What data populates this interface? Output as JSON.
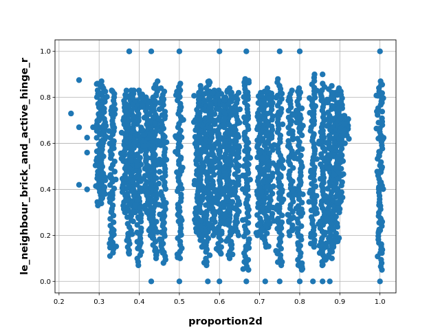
{
  "chart_data": {
    "type": "scatter",
    "title": "",
    "xlabel": "proportion2d",
    "ylabel": "le_neighbour_brick_and_active_hinge_r",
    "xlim": [
      0.19,
      1.04
    ],
    "ylim": [
      -0.05,
      1.05
    ],
    "xticks": [
      0.2,
      0.3,
      0.4,
      0.5,
      0.6,
      0.7,
      0.8,
      0.9,
      1.0
    ],
    "yticks": [
      0.0,
      0.2,
      0.4,
      0.6,
      0.8,
      1.0
    ],
    "xtick_labels": [
      "0.2",
      "0.3",
      "0.4",
      "0.5",
      "0.6",
      "0.7",
      "0.8",
      "0.9",
      "1.0"
    ],
    "ytick_labels": [
      "0.0",
      "0.2",
      "0.4",
      "0.6",
      "0.8",
      "1.0"
    ],
    "grid": true,
    "marker_color": "#1f77b4",
    "points_note": "dense vertical bands of points at discrete proportion2d values",
    "columns": [
      {
        "x": 0.5,
        "y_range": [
          0.1,
          0.86
        ],
        "extra_y": [
          0.0,
          1.0
        ]
      },
      {
        "x": 0.6,
        "y_range": [
          0.12,
          0.83
        ],
        "extra_y": [
          0.0,
          1.0
        ]
      },
      {
        "x": 0.667,
        "y_range": [
          0.05,
          0.88
        ],
        "extra_y": [
          0.0,
          1.0
        ]
      },
      {
        "x": 0.75,
        "y_range": [
          0.07,
          0.88
        ],
        "extra_y": [
          0.0,
          1.0
        ]
      },
      {
        "x": 0.8,
        "y_range": [
          0.05,
          0.84
        ],
        "extra_y": [
          0.0,
          1.0
        ]
      },
      {
        "x": 1.0,
        "y_range": [
          0.05,
          0.87
        ],
        "extra_y": [
          0.0,
          1.0
        ]
      },
      {
        "x": 0.46,
        "y_range": [
          0.08,
          0.84
        ],
        "extra_y": []
      },
      {
        "x": 0.44,
        "y_range": [
          0.1,
          0.87
        ],
        "extra_y": []
      },
      {
        "x": 0.43,
        "y_range": [
          0.2,
          0.8
        ],
        "extra_y": [
          0.0,
          1.0
        ]
      },
      {
        "x": 0.857,
        "y_range": [
          0.07,
          0.86
        ],
        "extra_y": [
          0.0
        ]
      },
      {
        "x": 0.875,
        "y_range": [
          0.1,
          0.85
        ],
        "extra_y": [
          0.0
        ]
      },
      {
        "x": 0.889,
        "y_range": [
          0.15,
          0.82
        ],
        "extra_y": []
      },
      {
        "x": 0.9,
        "y_range": [
          0.3,
          0.84
        ],
        "extra_y": []
      },
      {
        "x": 0.833,
        "y_range": [
          0.15,
          0.9
        ],
        "extra_y": [
          0.0
        ]
      },
      {
        "x": 0.714,
        "y_range": [
          0.15,
          0.84
        ],
        "extra_y": [
          0.0
        ]
      },
      {
        "x": 0.727,
        "y_range": [
          0.25,
          0.82
        ],
        "extra_y": []
      },
      {
        "x": 0.778,
        "y_range": [
          0.2,
          0.83
        ],
        "extra_y": []
      },
      {
        "x": 0.7,
        "y_range": [
          0.2,
          0.82
        ],
        "extra_y": []
      },
      {
        "x": 0.625,
        "y_range": [
          0.1,
          0.84
        ],
        "extra_y": []
      },
      {
        "x": 0.643,
        "y_range": [
          0.2,
          0.82
        ],
        "extra_y": []
      },
      {
        "x": 0.571,
        "y_range": [
          0.07,
          0.87
        ],
        "extra_y": [
          0.0
        ]
      },
      {
        "x": 0.556,
        "y_range": [
          0.15,
          0.85
        ],
        "extra_y": []
      },
      {
        "x": 0.545,
        "y_range": [
          0.2,
          0.82
        ],
        "extra_y": []
      },
      {
        "x": 0.583,
        "y_range": [
          0.2,
          0.83
        ],
        "extra_y": []
      },
      {
        "x": 0.615,
        "y_range": [
          0.25,
          0.8
        ],
        "extra_y": []
      },
      {
        "x": 0.909,
        "y_range": [
          0.6,
          0.72
        ],
        "extra_y": []
      },
      {
        "x": 0.917,
        "y_range": [
          0.62,
          0.72
        ],
        "extra_y": []
      },
      {
        "x": 0.4,
        "y_range": [
          0.07,
          0.83
        ],
        "extra_y": []
      },
      {
        "x": 0.417,
        "y_range": [
          0.3,
          0.8
        ],
        "extra_y": []
      },
      {
        "x": 0.375,
        "y_range": [
          0.12,
          0.83
        ],
        "extra_y": [
          1.0
        ]
      },
      {
        "x": 0.385,
        "y_range": [
          0.3,
          0.83
        ],
        "extra_y": []
      },
      {
        "x": 0.333,
        "y_range": [
          0.11,
          0.83
        ],
        "extra_y": []
      },
      {
        "x": 0.364,
        "y_range": [
          0.3,
          0.8
        ],
        "extra_y": []
      },
      {
        "x": 0.3,
        "y_range": [
          0.33,
          0.86
        ],
        "extra_y": []
      },
      {
        "x": 0.31,
        "y_range": [
          0.38,
          0.87
        ],
        "extra_y": []
      }
    ],
    "sparse_points": [
      {
        "x": 0.23,
        "y": 0.73
      },
      {
        "x": 0.25,
        "y": 0.875
      },
      {
        "x": 0.25,
        "y": 0.67
      },
      {
        "x": 0.25,
        "y": 0.42
      },
      {
        "x": 0.27,
        "y": 0.625
      },
      {
        "x": 0.27,
        "y": 0.4
      },
      {
        "x": 0.27,
        "y": 0.56
      },
      {
        "x": 0.285,
        "y": 0.67
      },
      {
        "x": 0.3,
        "y": 0.7
      },
      {
        "x": 0.3,
        "y": 0.57
      },
      {
        "x": 0.3,
        "y": 0.5
      },
      {
        "x": 0.375,
        "y": 1.0
      },
      {
        "x": 0.857,
        "y": 0.9
      }
    ]
  }
}
